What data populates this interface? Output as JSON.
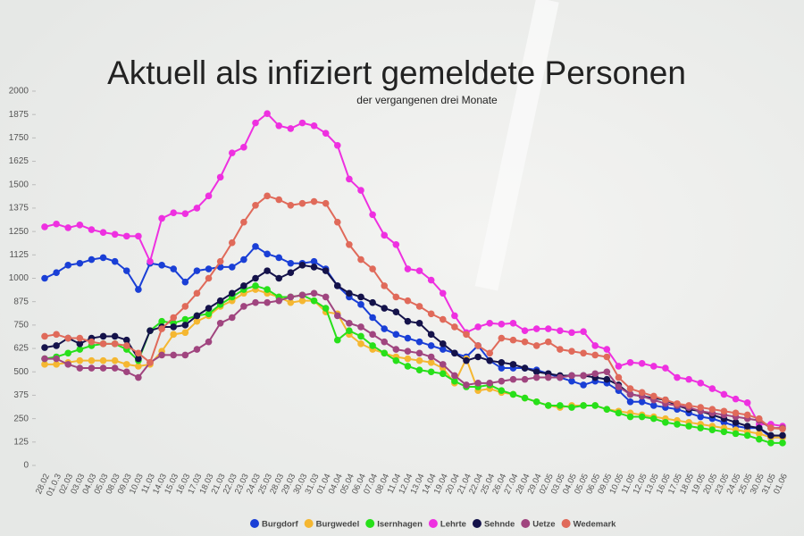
{
  "chart_data": {
    "type": "line",
    "title": "Aktuell als infiziert gemeldete Personen",
    "subtitle": "der vergangenen drei Monate",
    "categories": [
      "28.02",
      "01.0.3",
      "02.03",
      "03.03",
      "04.03",
      "05.03",
      "08.03",
      "09.03",
      "10.03",
      "11.03",
      "14.03",
      "15.03",
      "16.03",
      "17.03",
      "18.03",
      "21.03",
      "22.03",
      "23.03",
      "24.03",
      "25.03",
      "28.03",
      "29.03",
      "30.03",
      "31.03",
      "01.04",
      "04.04",
      "05.04",
      "06.04",
      "07.04",
      "08.04",
      "11.04",
      "12.04",
      "13.04",
      "14.04",
      "19.04",
      "20.04",
      "21.04",
      "22.04",
      "25.04",
      "26.04",
      "27.04",
      "28.04",
      "29.04",
      "02.05",
      "03.05",
      "04.05",
      "05.05",
      "06.05",
      "09.05",
      "10.05",
      "11.05",
      "12.05",
      "13.05",
      "16.05",
      "17.05",
      "18.05",
      "19.05",
      "20.05",
      "23.05",
      "24.05",
      "25.05",
      "30.05",
      "31.05",
      "01.06"
    ],
    "series": [
      {
        "name": "Burgdorf",
        "color": "#1a3fd6",
        "values": [
          1000,
          1030,
          1070,
          1080,
          1100,
          1110,
          1090,
          1040,
          940,
          1080,
          1070,
          1050,
          980,
          1040,
          1050,
          1060,
          1060,
          1100,
          1170,
          1130,
          1110,
          1080,
          1080,
          1090,
          1050,
          960,
          900,
          860,
          790,
          730,
          700,
          680,
          660,
          640,
          620,
          600,
          580,
          640,
          560,
          520,
          520,
          520,
          510,
          490,
          470,
          450,
          430,
          450,
          440,
          400,
          340,
          340,
          320,
          310,
          300,
          280,
          260,
          250,
          230,
          210,
          200,
          200,
          150,
          150
        ]
      },
      {
        "name": "Burgwedel",
        "color": "#f5b731",
        "values": [
          540,
          540,
          550,
          560,
          560,
          560,
          560,
          540,
          530,
          540,
          610,
          700,
          710,
          770,
          800,
          850,
          880,
          920,
          940,
          920,
          900,
          870,
          880,
          880,
          820,
          810,
          700,
          650,
          620,
          600,
          580,
          570,
          560,
          550,
          520,
          440,
          570,
          400,
          410,
          390,
          380,
          360,
          340,
          320,
          310,
          320,
          320,
          320,
          300,
          290,
          280,
          270,
          260,
          250,
          240,
          230,
          220,
          210,
          200,
          190,
          180,
          170,
          150,
          150
        ]
      },
      {
        "name": "Isernhagen",
        "color": "#27e01a",
        "values": [
          570,
          580,
          600,
          620,
          640,
          650,
          650,
          620,
          560,
          720,
          770,
          760,
          780,
          800,
          810,
          860,
          900,
          940,
          960,
          940,
          900,
          900,
          910,
          880,
          840,
          670,
          720,
          690,
          640,
          600,
          560,
          530,
          510,
          500,
          490,
          450,
          420,
          420,
          430,
          400,
          380,
          360,
          340,
          320,
          320,
          310,
          320,
          320,
          300,
          280,
          260,
          260,
          250,
          230,
          220,
          210,
          200,
          190,
          180,
          170,
          160,
          140,
          120,
          120
        ]
      },
      {
        "name": "Lehrte",
        "color": "#ee30e0",
        "values": [
          1275,
          1290,
          1270,
          1285,
          1260,
          1245,
          1235,
          1225,
          1225,
          1090,
          1320,
          1350,
          1345,
          1375,
          1440,
          1540,
          1670,
          1700,
          1830,
          1880,
          1815,
          1800,
          1830,
          1815,
          1775,
          1710,
          1530,
          1470,
          1340,
          1230,
          1180,
          1050,
          1040,
          990,
          920,
          800,
          710,
          740,
          760,
          755,
          760,
          720,
          730,
          730,
          720,
          710,
          715,
          640,
          620,
          530,
          550,
          545,
          530,
          520,
          470,
          460,
          440,
          410,
          380,
          355,
          335,
          220,
          220,
          210
        ]
      },
      {
        "name": "Sehnde",
        "color": "#14124a",
        "values": [
          630,
          640,
          680,
          650,
          680,
          690,
          690,
          670,
          570,
          720,
          740,
          740,
          750,
          800,
          840,
          880,
          920,
          960,
          1000,
          1040,
          1000,
          1030,
          1070,
          1060,
          1040,
          960,
          920,
          900,
          870,
          840,
          820,
          770,
          760,
          700,
          650,
          600,
          560,
          580,
          560,
          550,
          540,
          520,
          500,
          490,
          480,
          480,
          480,
          470,
          460,
          430,
          380,
          370,
          360,
          350,
          320,
          300,
          290,
          270,
          250,
          230,
          210,
          200,
          160,
          160
        ]
      },
      {
        "name": "Uetze",
        "color": "#a0457f",
        "values": [
          570,
          570,
          540,
          520,
          520,
          520,
          520,
          500,
          470,
          550,
          590,
          590,
          590,
          620,
          660,
          760,
          790,
          850,
          870,
          870,
          880,
          900,
          910,
          920,
          900,
          800,
          760,
          740,
          700,
          660,
          620,
          610,
          600,
          580,
          540,
          480,
          430,
          440,
          440,
          450,
          460,
          460,
          470,
          470,
          470,
          480,
          480,
          490,
          500,
          420,
          380,
          370,
          350,
          330,
          320,
          310,
          290,
          280,
          270,
          260,
          250,
          240,
          200,
          200
        ]
      },
      {
        "name": "Wedemark",
        "color": "#e06a5a",
        "values": [
          690,
          700,
          680,
          680,
          660,
          650,
          650,
          640,
          600,
          550,
          730,
          790,
          850,
          920,
          1000,
          1090,
          1190,
          1300,
          1390,
          1440,
          1420,
          1390,
          1400,
          1410,
          1400,
          1300,
          1180,
          1100,
          1050,
          960,
          900,
          880,
          850,
          810,
          780,
          740,
          700,
          640,
          600,
          680,
          670,
          660,
          640,
          660,
          620,
          610,
          600,
          590,
          580,
          470,
          410,
          390,
          370,
          350,
          330,
          320,
          310,
          300,
          290,
          280,
          270,
          250,
          200,
          195
        ]
      }
    ],
    "ylim": [
      0,
      2000
    ],
    "yticks": [
      0,
      125,
      250,
      375,
      500,
      625,
      750,
      875,
      1000,
      1125,
      1250,
      1375,
      1500,
      1625,
      1750,
      1875,
      2000
    ],
    "grid": false,
    "legend": "bottom"
  }
}
